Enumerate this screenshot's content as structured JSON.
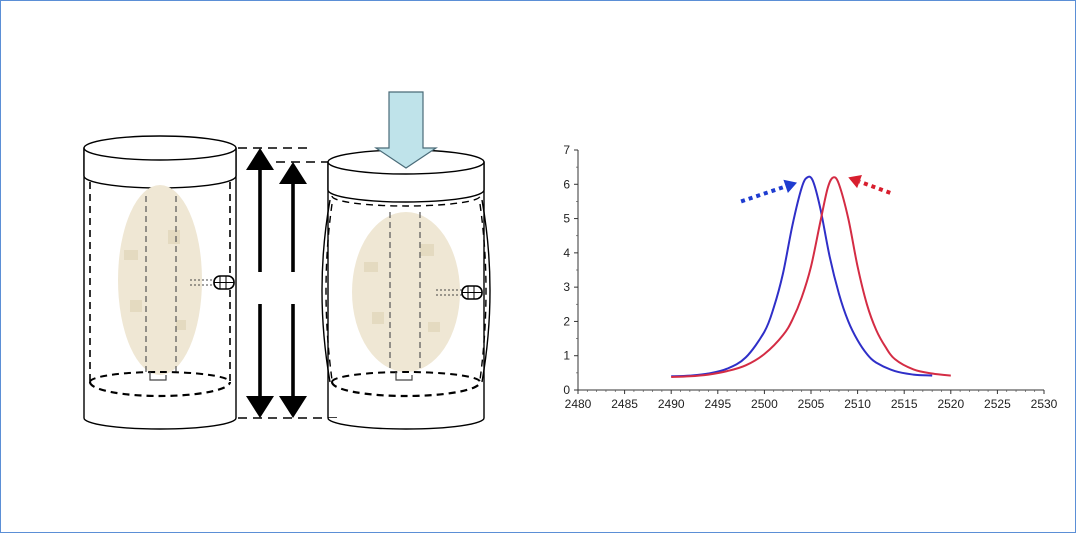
{
  "colors": {
    "frame_border": "#5b8fd6",
    "arrow_fill": "#bfe3ea",
    "sample_fill": "#efe7d4",
    "blue_curve": "#2f2fc8",
    "red_curve": "#d42c44",
    "blue_arrow": "#1e3cd0",
    "red_arrow": "#d81e2e"
  },
  "icons": [
    "down-arrow-icon",
    "vertical-dimension-arrow-icon",
    "sensor-probe-icon"
  ],
  "chart_data": {
    "type": "line",
    "title": "",
    "xlabel": "",
    "ylabel": "",
    "xlim": [
      2480,
      2530
    ],
    "ylim": [
      0,
      7
    ],
    "x_ticks": [
      2480,
      2485,
      2490,
      2495,
      2500,
      2505,
      2510,
      2515,
      2520,
      2525,
      2530
    ],
    "y_ticks": [
      0,
      1,
      2,
      3,
      4,
      5,
      6,
      7
    ],
    "grid": false,
    "series": [
      {
        "color": "#2f2fc8",
        "points": [
          [
            2490,
            0.4
          ],
          [
            2492,
            0.42
          ],
          [
            2494,
            0.48
          ],
          [
            2496,
            0.62
          ],
          [
            2498,
            0.95
          ],
          [
            2500,
            1.7
          ],
          [
            2501,
            2.4
          ],
          [
            2502,
            3.4
          ],
          [
            2503,
            4.8
          ],
          [
            2504,
            5.9
          ],
          [
            2504.6,
            6.2
          ],
          [
            2505.2,
            6.1
          ],
          [
            2506,
            5.3
          ],
          [
            2507,
            3.9
          ],
          [
            2508,
            2.8
          ],
          [
            2509,
            2.0
          ],
          [
            2510,
            1.45
          ],
          [
            2511,
            1.05
          ],
          [
            2512,
            0.8
          ],
          [
            2514,
            0.55
          ],
          [
            2516,
            0.45
          ],
          [
            2518,
            0.42
          ]
        ]
      },
      {
        "color": "#d42c44",
        "points": [
          [
            2490,
            0.38
          ],
          [
            2492,
            0.4
          ],
          [
            2494,
            0.45
          ],
          [
            2496,
            0.55
          ],
          [
            2498,
            0.72
          ],
          [
            2500,
            1.05
          ],
          [
            2502,
            1.6
          ],
          [
            2503,
            2.05
          ],
          [
            2504,
            2.7
          ],
          [
            2505,
            3.6
          ],
          [
            2506,
            4.9
          ],
          [
            2506.8,
            5.9
          ],
          [
            2507.4,
            6.2
          ],
          [
            2508,
            6.0
          ],
          [
            2509,
            5.0
          ],
          [
            2510,
            3.6
          ],
          [
            2511,
            2.5
          ],
          [
            2512,
            1.75
          ],
          [
            2513,
            1.25
          ],
          [
            2514,
            0.9
          ],
          [
            2516,
            0.6
          ],
          [
            2518,
            0.48
          ],
          [
            2520,
            0.42
          ]
        ]
      }
    ],
    "annotations": [
      {
        "type": "dotted-arrow",
        "color": "#1e3cd0",
        "from": [
          2497.5,
          5.5
        ],
        "to": [
          2503.5,
          6.05
        ]
      },
      {
        "type": "dotted-arrow",
        "color": "#d81e2e",
        "from": [
          2513.5,
          5.75
        ],
        "to": [
          2509.0,
          6.2
        ]
      }
    ]
  }
}
